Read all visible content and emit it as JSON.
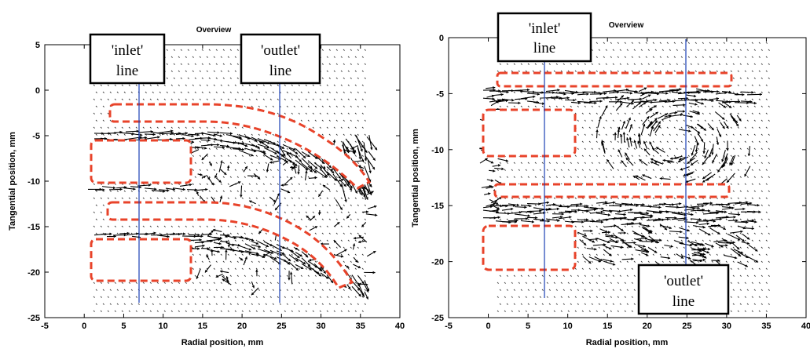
{
  "chart_data": [
    {
      "type": "quiver",
      "title": "Overview",
      "xlabel": "Radial position, mm",
      "ylabel": "Tangential position, mm",
      "xlim": [
        -5,
        40
      ],
      "ylim": [
        -25,
        5
      ],
      "xticks": [
        "-5",
        "0",
        "5",
        "10",
        "15",
        "20",
        "25",
        "30",
        "35",
        "40"
      ],
      "yticks": [
        "5",
        "0",
        "-5",
        "-10",
        "-15",
        "-20",
        "-25"
      ],
      "grid": false,
      "measurement_lines": [
        {
          "name": "inlet",
          "x": 7,
          "y_range": [
            -23,
            4
          ]
        },
        {
          "name": "outlet",
          "x": 25,
          "y_range": [
            -23,
            4
          ]
        }
      ],
      "callouts": [
        {
          "line1": "'inlet'",
          "line2": "line"
        },
        {
          "line1": "'outlet'",
          "line2": "line"
        }
      ],
      "obstacles_color": "#e8432a",
      "flow_color": "#000000"
    },
    {
      "type": "quiver",
      "title": "Overview",
      "xlabel": "Radial position, mm",
      "ylabel": "Tangential position, mm",
      "xlim": [
        -5,
        40
      ],
      "ylim": [
        -25,
        0
      ],
      "xticks": [
        "-5",
        "0",
        "5",
        "10",
        "15",
        "20",
        "25",
        "30",
        "35",
        "40"
      ],
      "yticks": [
        "0",
        "-5",
        "-10",
        "-15",
        "-20",
        "-25"
      ],
      "grid": false,
      "measurement_lines": [
        {
          "name": "inlet",
          "x": 7,
          "y_range": [
            -23.5,
            0
          ]
        },
        {
          "name": "outlet",
          "x": 25,
          "y_range": [
            -23.5,
            0
          ]
        }
      ],
      "callouts": [
        {
          "line1": "'inlet'",
          "line2": "line"
        },
        {
          "line1": "'outlet'",
          "line2": "line"
        }
      ],
      "obstacles_color": "#e8432a",
      "flow_color": "#000000"
    }
  ]
}
